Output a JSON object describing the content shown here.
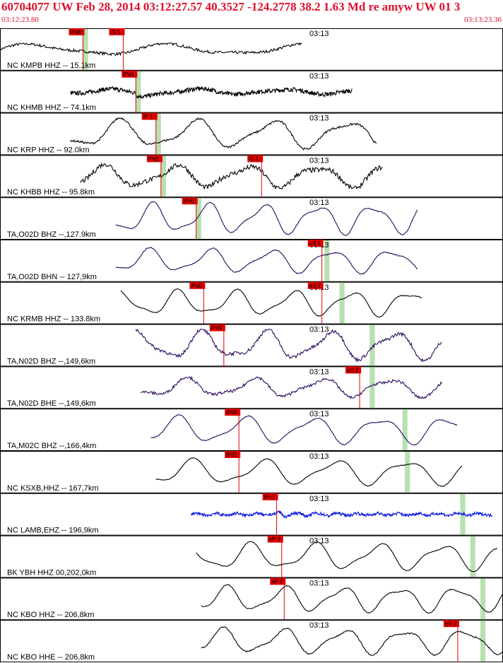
{
  "header": {
    "title": "60704077 UW Feb 28, 2014 03:12:27.57    40.3527 -124.2778 38.2 1.63 Md re amyw UW 01   3",
    "start_time": "03:12:23.80",
    "end_time": "03:13:23.36",
    "title_color": "#e0102a"
  },
  "chart_data": {
    "type": "line",
    "time_range": [
      "03:12:23.80",
      "03:13:23.36"
    ],
    "minute_tick_label": "03:13",
    "pick_color": "#e00000",
    "window_color": "#b8e0b0",
    "traces": [
      {
        "label": "NC KMPB HHZ -- 15.1km",
        "color": "#000000",
        "amp": 0.35,
        "freq": 0.9,
        "noise": 0.5,
        "start": 0.0,
        "end": 0.6,
        "picks": [
          {
            "text": "iPd0",
            "t": 0.165
          },
          {
            "text": "iS 1",
            "t": 0.245
          }
        ],
        "window": [
          0.165,
          0.175
        ]
      },
      {
        "label": "NC KHMB HHZ -- 74.1km",
        "color": "#000000",
        "amp": 0.45,
        "freq": 1.4,
        "noise": 0.6,
        "start": 0.14,
        "end": 0.7,
        "picks": [
          {
            "text": "iPd1",
            "t": 0.27
          }
        ],
        "window": [
          0.27,
          0.28
        ]
      },
      {
        "label": "NC KRP HHZ -- 92.0km",
        "color": "#000000",
        "amp": 0.9,
        "freq": 1.6,
        "noise": 0.15,
        "start": 0.14,
        "end": 0.75,
        "picks": [
          {
            "text": "iP 1",
            "t": 0.31
          }
        ],
        "window": [
          0.31,
          0.32
        ]
      },
      {
        "label": "NC KHBB HHZ -- 95.8km",
        "color": "#000000",
        "amp": 0.7,
        "freq": 1.7,
        "noise": 0.45,
        "start": 0.16,
        "end": 0.76,
        "picks": [
          {
            "text": "iPd1",
            "t": 0.32
          },
          {
            "text": "iS 1",
            "t": 0.52
          }
        ],
        "window": [
          0.32,
          0.33
        ]
      },
      {
        "label": "TA,O02D BHZ --,127.9km",
        "color": "#2a0a5e",
        "amp": 0.95,
        "freq": 2.2,
        "noise": 0.05,
        "start": 0.23,
        "end": 0.83,
        "picks": [
          {
            "text": "iPd1",
            "t": 0.39
          }
        ],
        "window": [
          0.39,
          0.4
        ]
      },
      {
        "label": "TA,O02D BHN -- 127,9km",
        "color": "#2a0a5e",
        "amp": 0.75,
        "freq": 2.0,
        "noise": 0.08,
        "start": 0.23,
        "end": 0.83,
        "picks": [
          {
            "text": "eS 2",
            "t": 0.64
          }
        ],
        "window": [
          0.645,
          0.655
        ]
      },
      {
        "label": "NC KRMB HHZ -- 133.8km",
        "color": "#000000",
        "amp": 0.8,
        "freq": 2.1,
        "noise": 0.05,
        "start": 0.24,
        "end": 0.84,
        "picks": [
          {
            "text": "iPd0",
            "t": 0.405
          },
          {
            "text": "eS 2",
            "t": 0.64
          }
        ],
        "window": [
          0.675,
          0.685
        ]
      },
      {
        "label": "TA,N02D BHZ --,149,6km",
        "color": "#2a0a5e",
        "amp": 0.9,
        "freq": 1.9,
        "noise": 0.25,
        "start": 0.27,
        "end": 0.88,
        "picks": [
          {
            "text": "iPd1",
            "t": 0.445
          }
        ],
        "window": [
          0.735,
          0.745
        ]
      },
      {
        "label": "TA,N02D BHE --,149,6km",
        "color": "#2a0a5e",
        "amp": 0.6,
        "freq": 1.8,
        "noise": 0.3,
        "start": 0.28,
        "end": 0.88,
        "picks": [
          {
            "text": "eS 2",
            "t": 0.715
          }
        ],
        "window": [
          0.735,
          0.745
        ]
      },
      {
        "label": "TA,M02C BHZ --,166,4km",
        "color": "#2a0a5e",
        "amp": 0.85,
        "freq": 1.8,
        "noise": 0.06,
        "start": 0.3,
        "end": 0.91,
        "picks": [
          {
            "text": "iPd0",
            "t": 0.475
          }
        ],
        "window": [
          0.8,
          0.81
        ]
      },
      {
        "label": "NC KSXB,HHZ -- 167,7km",
        "color": "#000000",
        "amp": 0.8,
        "freq": 1.7,
        "noise": 0.05,
        "start": 0.31,
        "end": 0.92,
        "picks": [
          {
            "text": "iPd1",
            "t": 0.475
          }
        ],
        "window": [
          0.805,
          0.815
        ]
      },
      {
        "label": "NC LAMB,EHZ -- 196,9km",
        "color": "#0a18e0",
        "amp": 0.2,
        "freq": 6.0,
        "noise": 0.9,
        "start": 0.38,
        "end": 0.98,
        "picks": [
          {
            "text": "iPc1",
            "t": 0.55
          }
        ],
        "window": [
          0.915,
          0.925
        ]
      },
      {
        "label": "BK YBH HHZ 00,202,0km",
        "color": "#000000",
        "amp": 0.85,
        "freq": 1.9,
        "noise": 0.04,
        "start": 0.39,
        "end": 0.99,
        "picks": [
          {
            "text": "eP 2",
            "t": 0.56
          }
        ],
        "window": [
          0.935,
          0.945
        ]
      },
      {
        "label": "NC KBO HHZ -- 206,8km",
        "color": "#000000",
        "amp": 0.8,
        "freq": 2.1,
        "noise": 0.06,
        "start": 0.4,
        "end": 1.0,
        "picks": [
          {
            "text": "eP 2",
            "t": 0.565
          }
        ],
        "window": [
          0.955,
          0.965
        ]
      },
      {
        "label": "NC KBO HHE -- 206,8km",
        "color": "#000000",
        "amp": 0.8,
        "freq": 2.0,
        "noise": 0.1,
        "start": 0.4,
        "end": 1.0,
        "picks": [
          {
            "text": "eS 2",
            "t": 0.91
          }
        ],
        "window": [
          0.955,
          0.965
        ]
      }
    ]
  }
}
